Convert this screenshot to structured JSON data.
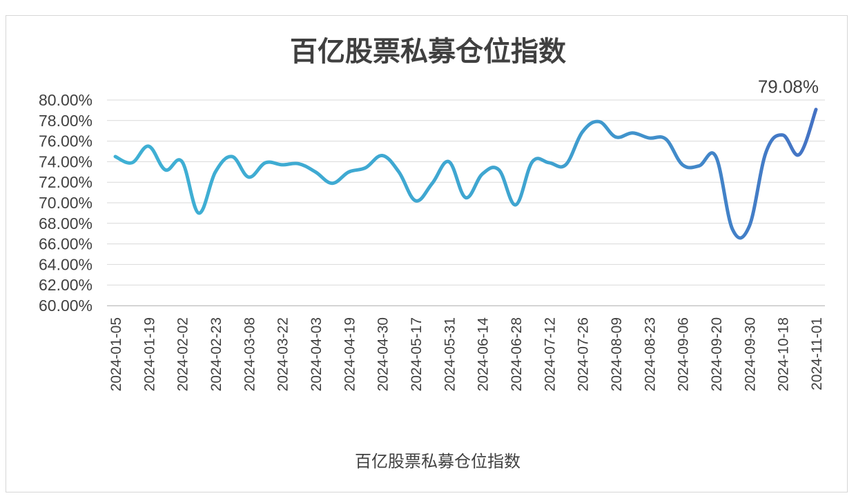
{
  "chart_data": {
    "type": "line",
    "title": "百亿股票私募仓位指数",
    "xlabel": "",
    "ylabel": "",
    "ylim": [
      60,
      80
    ],
    "y_ticks": [
      "60.00%",
      "62.00%",
      "64.00%",
      "66.00%",
      "68.00%",
      "70.00%",
      "72.00%",
      "74.00%",
      "76.00%",
      "78.00%",
      "80.00%"
    ],
    "x_tick_labels": [
      "2024-01-05",
      "2024-01-19",
      "2024-02-02",
      "2024-02-23",
      "2024-03-08",
      "2024-03-22",
      "2024-04-03",
      "2024-04-19",
      "2024-04-30",
      "2024-05-17",
      "2024-05-31",
      "2024-06-14",
      "2024-06-28",
      "2024-07-12",
      "2024-07-26",
      "2024-08-09",
      "2024-08-23",
      "2024-09-06",
      "2024-09-20",
      "2024-09-30",
      "2024-10-18",
      "2024-11-01"
    ],
    "grid": true,
    "legend": "bottom",
    "series": [
      {
        "name": "百亿股票私募仓位指数",
        "color_start": "#3fb0d4",
        "color_end": "#4472c4",
        "values": [
          74.5,
          73.9,
          75.5,
          73.2,
          74.0,
          69.0,
          73.0,
          74.5,
          72.5,
          73.9,
          73.7,
          73.8,
          73.0,
          71.9,
          73.0,
          73.4,
          74.6,
          73.0,
          70.2,
          71.9,
          74.0,
          70.5,
          72.8,
          73.2,
          69.8,
          74.0,
          73.9,
          73.7,
          76.9,
          77.9,
          76.4,
          76.8,
          76.3,
          76.2,
          73.7,
          73.6,
          74.5,
          67.4,
          67.7,
          74.9,
          76.6,
          74.7,
          79.08
        ]
      }
    ],
    "annotations": [
      {
        "text": "79.08%",
        "point": "last"
      }
    ]
  }
}
